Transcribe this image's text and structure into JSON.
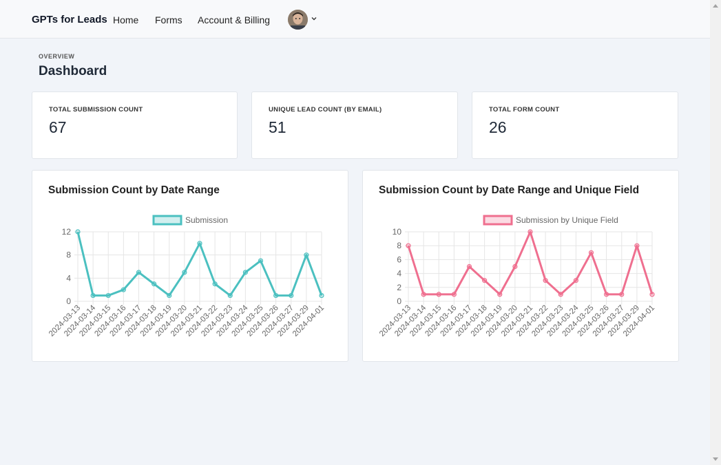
{
  "navbar": {
    "brand": "GPTs for Leads",
    "links": [
      "Home",
      "Forms",
      "Account & Billing"
    ]
  },
  "page": {
    "pretitle": "OVERVIEW",
    "title": "Dashboard"
  },
  "stats": [
    {
      "label": "TOTAL SUBMISSION COUNT",
      "value": "67"
    },
    {
      "label": "UNIQUE LEAD COUNT (BY EMAIL)",
      "value": "51"
    },
    {
      "label": "TOTAL FORM COUNT",
      "value": "26"
    }
  ],
  "charts": {
    "colors": {
      "teal": "#4bc0c0",
      "pink": "#ef6f8f"
    },
    "titles": [
      "Submission Count by Date Range",
      "Submission Count by Date Range and Unique Field"
    ]
  },
  "chart_data": [
    {
      "type": "line",
      "title": "Submission Count by Date Range",
      "x": [
        "2024-03-13",
        "2024-03-14",
        "2024-03-15",
        "2024-03-16",
        "2024-03-17",
        "2024-03-18",
        "2024-03-19",
        "2024-03-20",
        "2024-03-21",
        "2024-03-22",
        "2024-03-23",
        "2024-03-24",
        "2024-03-25",
        "2024-03-26",
        "2024-03-27",
        "2024-03-29",
        "2024-04-01"
      ],
      "series": [
        {
          "name": "Submission",
          "values": [
            12,
            1,
            1,
            2,
            5,
            3,
            1,
            5,
            10,
            3,
            1,
            5,
            7,
            1,
            1,
            8,
            1
          ]
        }
      ],
      "yticks": [
        0,
        4,
        8,
        12
      ],
      "ylim": [
        0,
        12
      ],
      "legend": "top",
      "grid": true
    },
    {
      "type": "line",
      "title": "Submission Count by Date Range and Unique Field",
      "x": [
        "2024-03-13",
        "2024-03-14",
        "2024-03-15",
        "2024-03-16",
        "2024-03-17",
        "2024-03-18",
        "2024-03-19",
        "2024-03-20",
        "2024-03-21",
        "2024-03-22",
        "2024-03-23",
        "2024-03-24",
        "2024-03-25",
        "2024-03-26",
        "2024-03-27",
        "2024-03-29",
        "2024-04-01"
      ],
      "series": [
        {
          "name": "Submission by Unique Field",
          "values": [
            8,
            1,
            1,
            1,
            5,
            3,
            1,
            5,
            10,
            3,
            1,
            3,
            7,
            1,
            1,
            8,
            1
          ]
        }
      ],
      "yticks": [
        0,
        2,
        4,
        6,
        8,
        10
      ],
      "ylim": [
        0,
        10
      ],
      "legend": "top",
      "grid": true
    }
  ]
}
